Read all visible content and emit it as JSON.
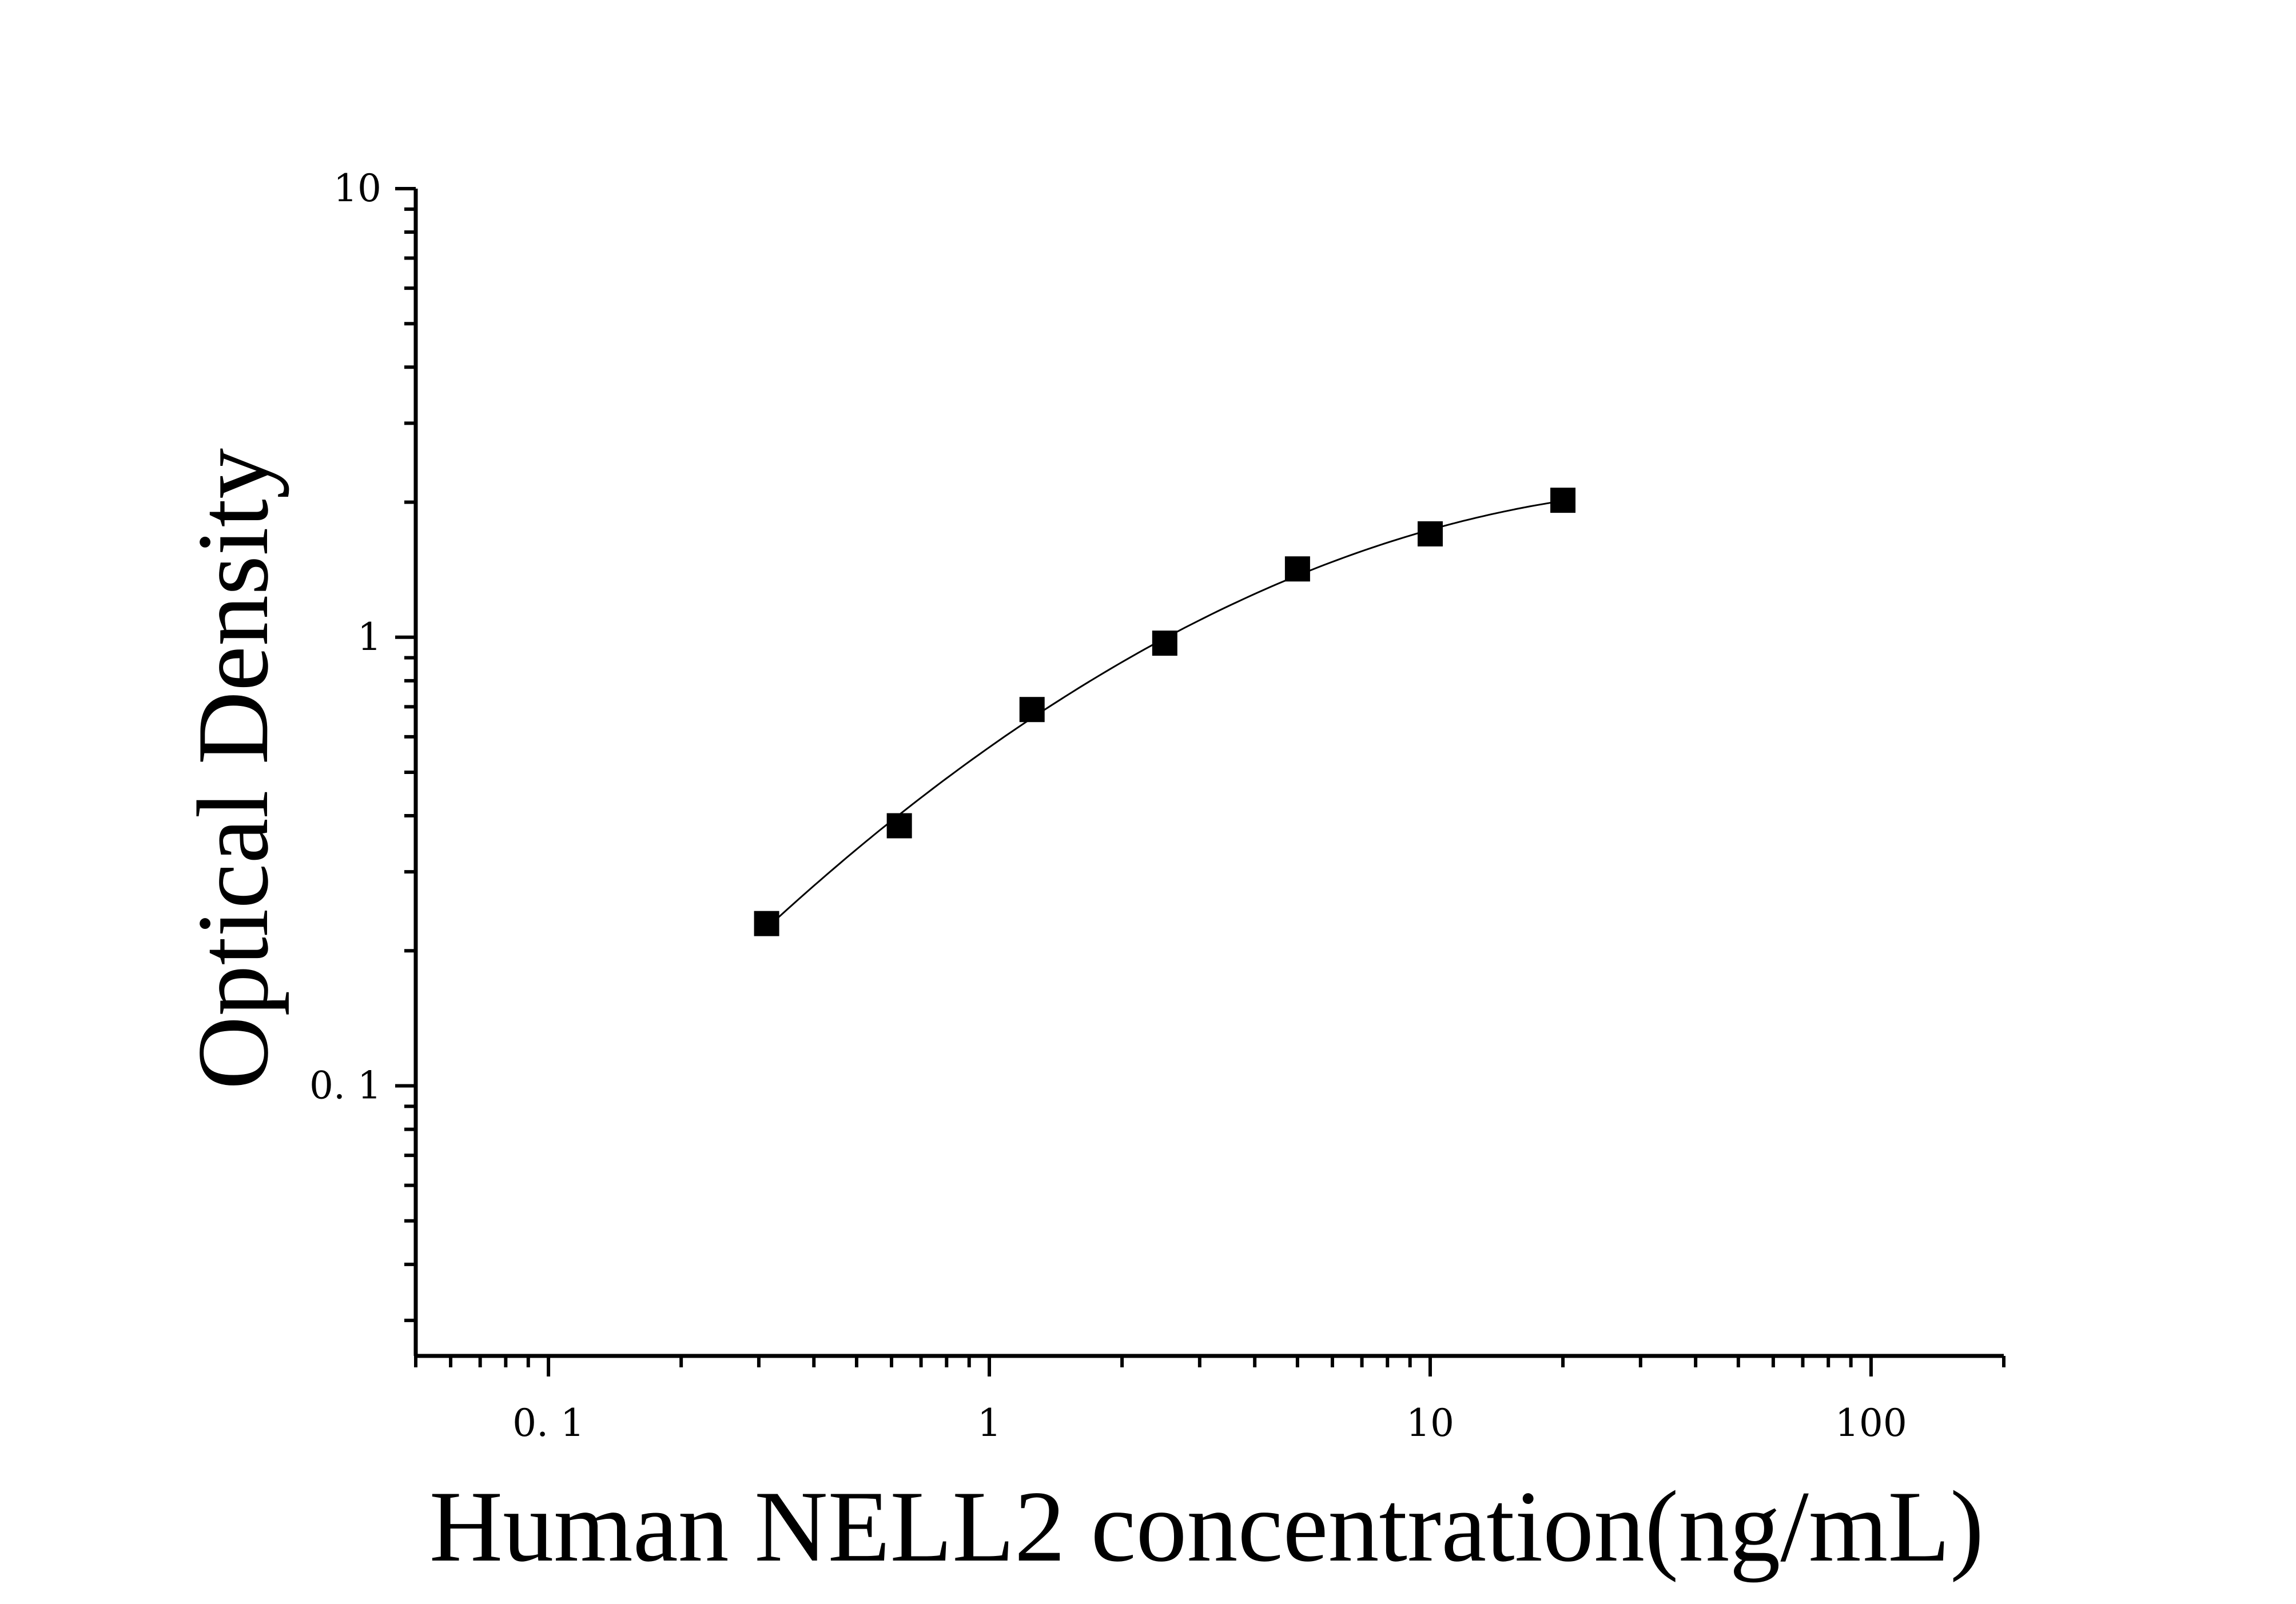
{
  "chart_data": {
    "type": "scatter",
    "title": "",
    "xlabel": "Human NELL2 concentration(ng/mL)",
    "ylabel": "Optical Density",
    "xscale": "log",
    "yscale": "log",
    "xlim": [
      0.05,
      200
    ],
    "ylim": [
      0.025,
      10
    ],
    "x_ticks": [
      {
        "value": 0.1,
        "label": "0. 1"
      },
      {
        "value": 1,
        "label": "1"
      },
      {
        "value": 10,
        "label": "10"
      },
      {
        "value": 100,
        "label": "100"
      }
    ],
    "y_ticks": [
      {
        "value": 0.1,
        "label": "0. 1"
      },
      {
        "value": 1,
        "label": "1"
      },
      {
        "value": 10,
        "label": "10"
      }
    ],
    "grid": false,
    "legend": "none",
    "marker": "square",
    "fit_curve": true,
    "colors": {
      "marker": "#000000",
      "curve": "#000000",
      "axis": "#000000"
    },
    "points": [
      {
        "x": 0.3125,
        "y": 0.23
      },
      {
        "x": 0.625,
        "y": 0.38
      },
      {
        "x": 1.25,
        "y": 0.69
      },
      {
        "x": 2.5,
        "y": 0.97
      },
      {
        "x": 5,
        "y": 1.42
      },
      {
        "x": 10,
        "y": 1.7
      },
      {
        "x": 20,
        "y": 2.02
      }
    ]
  }
}
